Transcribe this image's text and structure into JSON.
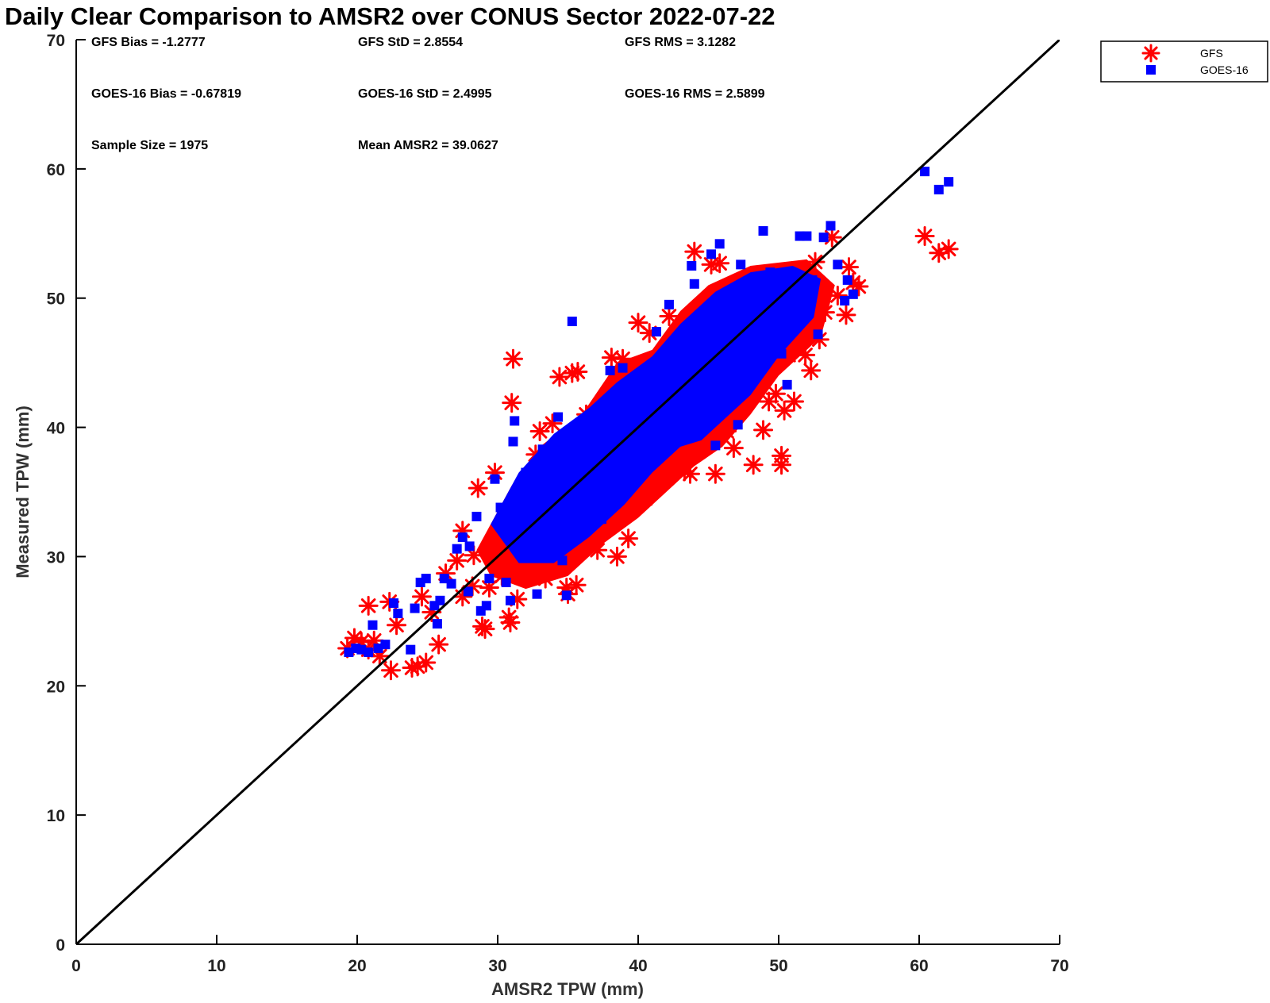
{
  "chart_data": {
    "type": "scatter",
    "title": "Daily Clear Comparison to AMSR2 over CONUS Sector 2022-07-22",
    "xlabel": "AMSR2 TPW (mm)",
    "ylabel": "Measured TPW (mm)",
    "xlim": [
      0,
      70
    ],
    "ylim": [
      0,
      70
    ],
    "xticks": [
      "0",
      "10",
      "20",
      "30",
      "40",
      "50",
      "60",
      "70"
    ],
    "yticks": [
      "0",
      "10",
      "20",
      "30",
      "40",
      "50",
      "60",
      "70"
    ],
    "grid": false,
    "legend_position": "outside-top-right",
    "reference_line": {
      "x": [
        0,
        70
      ],
      "y": [
        0,
        70
      ],
      "color": "#000000"
    },
    "stats": [
      [
        "GFS Bias = -1.2777",
        "GFS StD = 2.8554",
        "GFS RMS = 3.1282"
      ],
      [
        "GOES-16 Bias = -0.67819",
        "GOES-16 StD = 2.4995",
        "GOES-16 RMS = 2.5899"
      ],
      [
        "Sample Size = 1975",
        "Mean AMSR2 = 39.0627"
      ]
    ],
    "series": [
      {
        "name": "GFS",
        "marker": "asterisk",
        "color": "#ff0000",
        "points": [
          [
            19.3,
            22.9
          ],
          [
            19.8,
            23.7
          ],
          [
            20.3,
            23.4
          ],
          [
            20.8,
            22.8
          ],
          [
            21.2,
            23.5
          ],
          [
            21.6,
            22.3
          ],
          [
            20.8,
            26.2
          ],
          [
            22.3,
            26.5
          ],
          [
            22.4,
            21.2
          ],
          [
            22.8,
            24.7
          ],
          [
            23.9,
            21.4
          ],
          [
            24.3,
            21.5
          ],
          [
            24.9,
            21.8
          ],
          [
            24.6,
            26.9
          ],
          [
            25.3,
            25.7
          ],
          [
            25.8,
            23.2
          ],
          [
            26.3,
            28.7
          ],
          [
            27.1,
            29.7
          ],
          [
            27.5,
            32.0
          ],
          [
            27.5,
            26.9
          ],
          [
            28.2,
            27.7
          ],
          [
            28.3,
            30.1
          ],
          [
            28.6,
            35.3
          ],
          [
            28.9,
            24.6
          ],
          [
            29.1,
            24.4
          ],
          [
            29.4,
            27.6
          ],
          [
            29.8,
            36.5
          ],
          [
            30.3,
            28.5
          ],
          [
            30.8,
            25.3
          ],
          [
            30.9,
            24.9
          ],
          [
            31.1,
            45.3
          ],
          [
            31.0,
            41.9
          ],
          [
            31.4,
            26.7
          ],
          [
            31.8,
            30.8
          ],
          [
            32.2,
            29.0
          ],
          [
            32.7,
            37.9
          ],
          [
            33.0,
            39.7
          ],
          [
            33.4,
            28.3
          ],
          [
            33.9,
            40.3
          ],
          [
            34.3,
            30.3
          ],
          [
            34.4,
            43.9
          ],
          [
            34.9,
            27.6
          ],
          [
            35.0,
            27.1
          ],
          [
            35.3,
            44.2
          ],
          [
            35.7,
            44.3
          ],
          [
            35.6,
            27.8
          ],
          [
            36.0,
            31.2
          ],
          [
            36.3,
            41.0
          ],
          [
            36.9,
            38.5
          ],
          [
            37.1,
            30.5
          ],
          [
            37.4,
            32.6
          ],
          [
            37.8,
            35.1
          ],
          [
            38.1,
            45.4
          ],
          [
            38.5,
            30.0
          ],
          [
            38.9,
            45.3
          ],
          [
            39.3,
            31.4
          ],
          [
            39.7,
            34.8
          ],
          [
            40.0,
            48.1
          ],
          [
            40.5,
            34.5
          ],
          [
            40.8,
            47.3
          ],
          [
            41.2,
            35.3
          ],
          [
            41.6,
            39.0
          ],
          [
            41.9,
            37.1
          ],
          [
            42.2,
            48.6
          ],
          [
            42.6,
            43.7
          ],
          [
            43.0,
            38.8
          ],
          [
            43.3,
            36.6
          ],
          [
            43.7,
            36.4
          ],
          [
            44.0,
            53.6
          ],
          [
            44.4,
            49.0
          ],
          [
            44.8,
            40.4
          ],
          [
            45.1,
            44.4
          ],
          [
            45.2,
            52.6
          ],
          [
            45.5,
            36.4
          ],
          [
            45.8,
            52.7
          ],
          [
            45.9,
            42.6
          ],
          [
            46.3,
            39.7
          ],
          [
            46.8,
            38.4
          ],
          [
            47.0,
            49.8
          ],
          [
            47.4,
            43.2
          ],
          [
            47.9,
            47.1
          ],
          [
            48.2,
            37.1
          ],
          [
            48.5,
            46.4
          ],
          [
            48.9,
            39.8
          ],
          [
            49.3,
            42.0
          ],
          [
            49.8,
            42.6
          ],
          [
            50.2,
            37.8
          ],
          [
            50.2,
            37.1
          ],
          [
            50.4,
            41.3
          ],
          [
            50.7,
            45.6
          ],
          [
            51.1,
            42.0
          ],
          [
            51.6,
            49.4
          ],
          [
            51.9,
            45.6
          ],
          [
            52.3,
            44.4
          ],
          [
            52.6,
            52.8
          ],
          [
            52.9,
            46.8
          ],
          [
            53.3,
            48.9
          ],
          [
            53.8,
            54.7
          ],
          [
            54.2,
            50.2
          ],
          [
            54.8,
            48.7
          ],
          [
            55.0,
            52.4
          ],
          [
            55.3,
            51.2
          ],
          [
            55.7,
            50.9
          ],
          [
            60.4,
            54.8
          ],
          [
            61.4,
            53.5
          ],
          [
            62.1,
            53.8
          ]
        ]
      },
      {
        "name": "GOES-16",
        "marker": "square",
        "color": "#0000ff",
        "points": [
          [
            19.4,
            22.6
          ],
          [
            19.9,
            22.9
          ],
          [
            20.3,
            22.8
          ],
          [
            20.8,
            22.6
          ],
          [
            21.1,
            24.7
          ],
          [
            21.5,
            22.9
          ],
          [
            22.0,
            23.2
          ],
          [
            22.6,
            26.4
          ],
          [
            22.9,
            25.6
          ],
          [
            23.8,
            22.8
          ],
          [
            24.1,
            26.0
          ],
          [
            24.5,
            28.0
          ],
          [
            24.9,
            28.3
          ],
          [
            25.5,
            26.2
          ],
          [
            25.7,
            24.8
          ],
          [
            25.9,
            26.6
          ],
          [
            26.2,
            28.3
          ],
          [
            26.7,
            27.9
          ],
          [
            27.1,
            30.6
          ],
          [
            27.5,
            31.5
          ],
          [
            27.9,
            27.3
          ],
          [
            28.0,
            30.8
          ],
          [
            28.5,
            33.1
          ],
          [
            28.8,
            25.8
          ],
          [
            29.2,
            26.2
          ],
          [
            29.4,
            28.3
          ],
          [
            29.8,
            36.0
          ],
          [
            30.2,
            33.8
          ],
          [
            30.6,
            28.0
          ],
          [
            30.9,
            26.6
          ],
          [
            31.2,
            40.5
          ],
          [
            31.1,
            38.9
          ],
          [
            31.6,
            31.2
          ],
          [
            32.0,
            36.5
          ],
          [
            32.4,
            34.0
          ],
          [
            32.8,
            27.1
          ],
          [
            33.2,
            38.3
          ],
          [
            33.5,
            29.9
          ],
          [
            34.0,
            32.0
          ],
          [
            34.3,
            40.8
          ],
          [
            34.6,
            29.7
          ],
          [
            34.9,
            27.0
          ],
          [
            35.3,
            48.2
          ],
          [
            35.6,
            34.3
          ],
          [
            36.0,
            36.9
          ],
          [
            36.3,
            39.8
          ],
          [
            36.7,
            34.7
          ],
          [
            37.1,
            41.4
          ],
          [
            37.4,
            32.9
          ],
          [
            37.8,
            38.0
          ],
          [
            38.0,
            44.4
          ],
          [
            38.5,
            35.4
          ],
          [
            38.9,
            44.6
          ],
          [
            39.2,
            40.6
          ],
          [
            39.7,
            36.4
          ],
          [
            40.0,
            42.8
          ],
          [
            40.5,
            41.1
          ],
          [
            40.8,
            38.0
          ],
          [
            41.3,
            47.4
          ],
          [
            41.8,
            43.8
          ],
          [
            42.2,
            49.5
          ],
          [
            42.6,
            41.5
          ],
          [
            43.0,
            47.0
          ],
          [
            43.3,
            43.3
          ],
          [
            43.8,
            52.5
          ],
          [
            44.0,
            51.1
          ],
          [
            44.4,
            45.3
          ],
          [
            44.7,
            48.8
          ],
          [
            45.2,
            53.4
          ],
          [
            45.5,
            38.6
          ],
          [
            45.8,
            54.2
          ],
          [
            46.1,
            49.7
          ],
          [
            46.5,
            42.3
          ],
          [
            46.8,
            45.6
          ],
          [
            47.1,
            40.2
          ],
          [
            47.3,
            52.6
          ],
          [
            47.7,
            46.6
          ],
          [
            48.0,
            49.8
          ],
          [
            48.3,
            48.5
          ],
          [
            48.6,
            45.0
          ],
          [
            48.9,
            55.2
          ],
          [
            49.4,
            52.0
          ],
          [
            49.8,
            48.3
          ],
          [
            50.2,
            45.7
          ],
          [
            50.6,
            43.3
          ],
          [
            51.0,
            50.1
          ],
          [
            51.5,
            54.8
          ],
          [
            52.0,
            54.8
          ],
          [
            52.4,
            51.4
          ],
          [
            52.8,
            47.2
          ],
          [
            53.2,
            54.7
          ],
          [
            53.7,
            55.6
          ],
          [
            54.2,
            52.6
          ],
          [
            54.7,
            49.8
          ],
          [
            54.9,
            51.4
          ],
          [
            55.3,
            50.3
          ],
          [
            60.4,
            59.8
          ],
          [
            61.4,
            58.4
          ],
          [
            62.1,
            59.0
          ]
        ]
      }
    ]
  }
}
